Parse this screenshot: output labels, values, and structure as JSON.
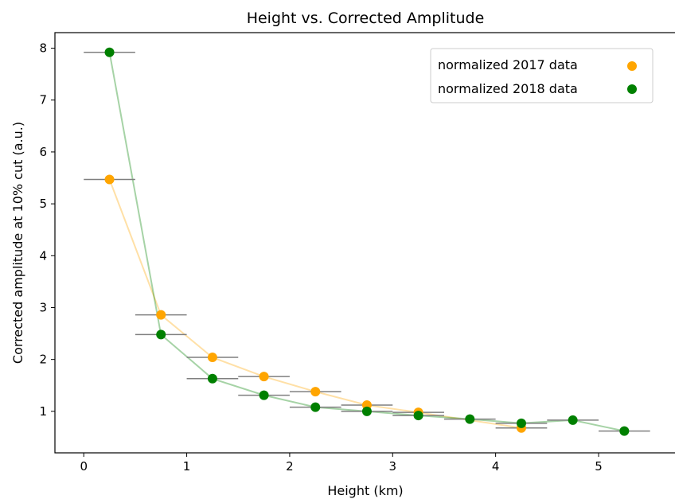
{
  "chart_data": {
    "type": "scatter",
    "title": "Height vs. Corrected Amplitude",
    "xlabel": "Height (km)",
    "ylabel": "Corrected amplitude at 10% cut (a.u.)",
    "xlim": [
      -0.28,
      5.75
    ],
    "ylim": [
      0.2,
      8.3
    ],
    "xticks": [
      0,
      1,
      2,
      3,
      4,
      5
    ],
    "yticks": [
      1,
      2,
      3,
      4,
      5,
      6,
      7,
      8
    ],
    "x_error": 0.25,
    "legend_position": "top-right",
    "grid": false,
    "series": [
      {
        "name": "normalized 2017 data",
        "color": "#FFA500",
        "x": [
          0.25,
          0.75,
          1.25,
          1.75,
          2.25,
          2.75,
          3.25,
          4.25
        ],
        "y": [
          5.47,
          2.86,
          2.04,
          1.67,
          1.38,
          1.12,
          0.98,
          0.68
        ]
      },
      {
        "name": "normalized 2018 data",
        "color": "#008000",
        "x": [
          0.25,
          0.75,
          1.25,
          1.75,
          2.25,
          2.75,
          3.25,
          3.75,
          4.25,
          4.75,
          5.25
        ],
        "y": [
          7.92,
          2.48,
          1.63,
          1.31,
          1.08,
          1.0,
          0.92,
          0.85,
          0.77,
          0.83,
          0.62
        ]
      }
    ]
  }
}
